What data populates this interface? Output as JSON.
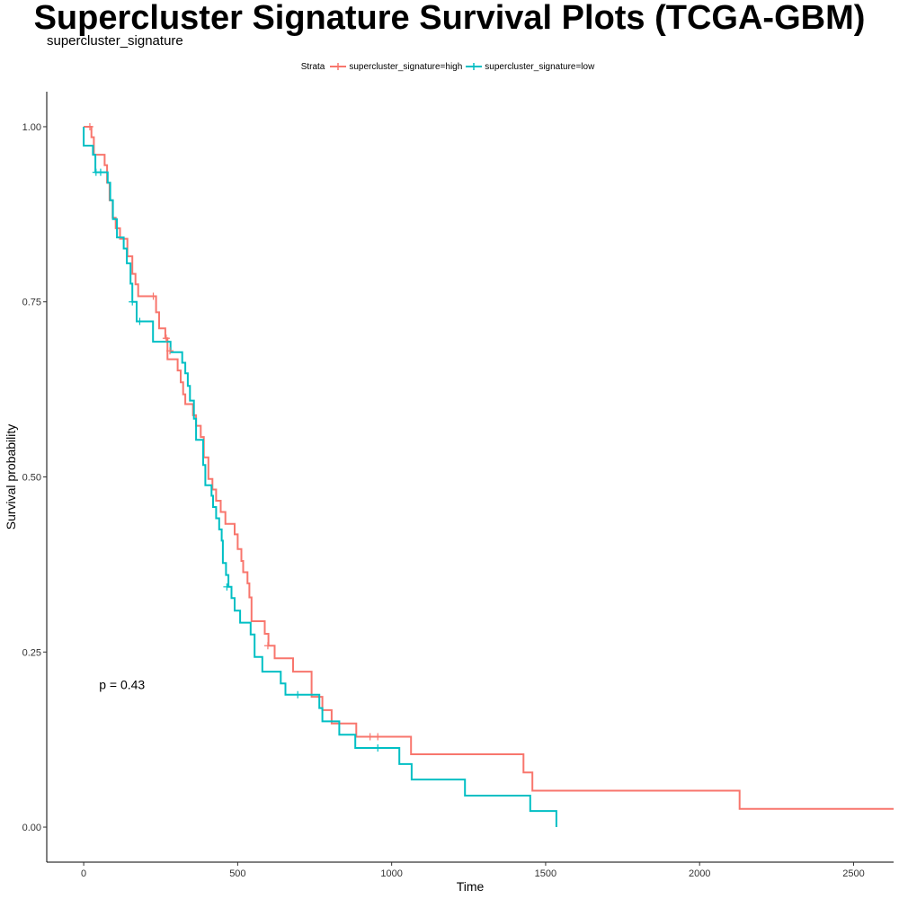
{
  "title": "Supercluster Signature Survival Plots (TCGA-GBM)",
  "subtitle": "supercluster_signature",
  "legend": {
    "title": "Strata",
    "items": [
      {
        "label": "supercluster_signature=high",
        "color": "#F8766D"
      },
      {
        "label": "supercluster_signature=low",
        "color": "#00BFC4"
      }
    ]
  },
  "chart_data": {
    "type": "line",
    "step": true,
    "xlabel": "Time",
    "ylabel": "Survival probability",
    "xlim": [
      -120,
      2630
    ],
    "ylim": [
      -0.05,
      1.05
    ],
    "xticks": [
      0,
      500,
      1000,
      1500,
      2000,
      2500
    ],
    "xtick_labels": [
      "0",
      "500",
      "1000",
      "1500",
      "2000",
      "2500"
    ],
    "yticks": [
      0,
      0.25,
      0.5,
      0.75,
      1.0
    ],
    "ytick_labels": [
      "0.00",
      "0.25",
      "0.50",
      "0.75",
      "1.00"
    ],
    "grid": false,
    "annotation": {
      "text": "p = 0.43",
      "x": 50,
      "y": 0.197
    },
    "series": [
      {
        "name": "supercluster_signature=high",
        "color": "#F8766D",
        "points": [
          [
            0,
            1.0
          ],
          [
            25,
            1.0
          ],
          [
            25,
            0.985
          ],
          [
            33,
            0.985
          ],
          [
            33,
            0.96
          ],
          [
            68,
            0.96
          ],
          [
            68,
            0.945
          ],
          [
            76,
            0.945
          ],
          [
            76,
            0.92
          ],
          [
            84,
            0.92
          ],
          [
            84,
            0.895
          ],
          [
            94,
            0.895
          ],
          [
            94,
            0.87
          ],
          [
            104,
            0.87
          ],
          [
            104,
            0.855
          ],
          [
            118,
            0.855
          ],
          [
            118,
            0.84
          ],
          [
            142,
            0.84
          ],
          [
            142,
            0.815
          ],
          [
            158,
            0.815
          ],
          [
            158,
            0.79
          ],
          [
            168,
            0.79
          ],
          [
            168,
            0.775
          ],
          [
            177,
            0.775
          ],
          [
            177,
            0.758
          ],
          [
            235,
            0.758
          ],
          [
            235,
            0.735
          ],
          [
            245,
            0.735
          ],
          [
            245,
            0.712
          ],
          [
            265,
            0.712
          ],
          [
            265,
            0.698
          ],
          [
            272,
            0.698
          ],
          [
            272,
            0.668
          ],
          [
            305,
            0.668
          ],
          [
            305,
            0.652
          ],
          [
            315,
            0.652
          ],
          [
            315,
            0.635
          ],
          [
            323,
            0.635
          ],
          [
            323,
            0.618
          ],
          [
            330,
            0.618
          ],
          [
            330,
            0.604
          ],
          [
            355,
            0.604
          ],
          [
            355,
            0.588
          ],
          [
            365,
            0.588
          ],
          [
            365,
            0.573
          ],
          [
            380,
            0.573
          ],
          [
            380,
            0.557
          ],
          [
            390,
            0.557
          ],
          [
            390,
            0.528
          ],
          [
            405,
            0.528
          ],
          [
            405,
            0.497
          ],
          [
            418,
            0.497
          ],
          [
            418,
            0.482
          ],
          [
            430,
            0.482
          ],
          [
            430,
            0.466
          ],
          [
            445,
            0.466
          ],
          [
            445,
            0.45
          ],
          [
            460,
            0.45
          ],
          [
            460,
            0.433
          ],
          [
            490,
            0.433
          ],
          [
            490,
            0.418
          ],
          [
            500,
            0.418
          ],
          [
            500,
            0.397
          ],
          [
            512,
            0.397
          ],
          [
            512,
            0.38
          ],
          [
            518,
            0.38
          ],
          [
            518,
            0.364
          ],
          [
            532,
            0.364
          ],
          [
            532,
            0.348
          ],
          [
            538,
            0.348
          ],
          [
            538,
            0.328
          ],
          [
            545,
            0.328
          ],
          [
            545,
            0.294
          ],
          [
            588,
            0.294
          ],
          [
            588,
            0.276
          ],
          [
            600,
            0.276
          ],
          [
            600,
            0.259
          ],
          [
            620,
            0.259
          ],
          [
            620,
            0.241
          ],
          [
            680,
            0.241
          ],
          [
            680,
            0.222
          ],
          [
            740,
            0.222
          ],
          [
            740,
            0.186
          ],
          [
            775,
            0.186
          ],
          [
            775,
            0.167
          ],
          [
            805,
            0.167
          ],
          [
            805,
            0.148
          ],
          [
            885,
            0.148
          ],
          [
            885,
            0.129
          ],
          [
            1063,
            0.129
          ],
          [
            1063,
            0.104
          ],
          [
            1428,
            0.104
          ],
          [
            1428,
            0.078
          ],
          [
            1457,
            0.078
          ],
          [
            1457,
            0.052
          ],
          [
            2130,
            0.052
          ],
          [
            2130,
            0.026
          ],
          [
            2630,
            0.026
          ]
        ],
        "censors": [
          [
            20,
            1.0
          ],
          [
            226,
            0.758
          ],
          [
            268,
            0.698
          ],
          [
            280,
            0.68
          ],
          [
            598,
            0.259
          ],
          [
            930,
            0.129
          ],
          [
            955,
            0.129
          ]
        ]
      },
      {
        "name": "supercluster_signature=low",
        "color": "#00BFC4",
        "points": [
          [
            0,
            1.0
          ],
          [
            0,
            0.973
          ],
          [
            30,
            0.973
          ],
          [
            30,
            0.96
          ],
          [
            38,
            0.96
          ],
          [
            38,
            0.935
          ],
          [
            78,
            0.935
          ],
          [
            78,
            0.92
          ],
          [
            86,
            0.92
          ],
          [
            86,
            0.895
          ],
          [
            95,
            0.895
          ],
          [
            95,
            0.868
          ],
          [
            108,
            0.868
          ],
          [
            108,
            0.842
          ],
          [
            130,
            0.842
          ],
          [
            130,
            0.826
          ],
          [
            140,
            0.826
          ],
          [
            140,
            0.805
          ],
          [
            152,
            0.805
          ],
          [
            152,
            0.776
          ],
          [
            158,
            0.776
          ],
          [
            158,
            0.75
          ],
          [
            172,
            0.75
          ],
          [
            172,
            0.722
          ],
          [
            225,
            0.722
          ],
          [
            225,
            0.693
          ],
          [
            282,
            0.693
          ],
          [
            282,
            0.678
          ],
          [
            320,
            0.678
          ],
          [
            320,
            0.663
          ],
          [
            330,
            0.663
          ],
          [
            330,
            0.648
          ],
          [
            338,
            0.648
          ],
          [
            338,
            0.63
          ],
          [
            345,
            0.63
          ],
          [
            345,
            0.609
          ],
          [
            358,
            0.609
          ],
          [
            358,
            0.583
          ],
          [
            365,
            0.583
          ],
          [
            365,
            0.553
          ],
          [
            388,
            0.553
          ],
          [
            388,
            0.517
          ],
          [
            395,
            0.517
          ],
          [
            395,
            0.488
          ],
          [
            415,
            0.488
          ],
          [
            415,
            0.473
          ],
          [
            420,
            0.473
          ],
          [
            420,
            0.457
          ],
          [
            430,
            0.457
          ],
          [
            430,
            0.441
          ],
          [
            440,
            0.441
          ],
          [
            440,
            0.425
          ],
          [
            448,
            0.425
          ],
          [
            448,
            0.409
          ],
          [
            452,
            0.409
          ],
          [
            452,
            0.377
          ],
          [
            462,
            0.377
          ],
          [
            462,
            0.36
          ],
          [
            470,
            0.36
          ],
          [
            470,
            0.343
          ],
          [
            480,
            0.343
          ],
          [
            480,
            0.327
          ],
          [
            490,
            0.327
          ],
          [
            490,
            0.309
          ],
          [
            508,
            0.309
          ],
          [
            508,
            0.292
          ],
          [
            542,
            0.292
          ],
          [
            542,
            0.275
          ],
          [
            555,
            0.275
          ],
          [
            555,
            0.243
          ],
          [
            580,
            0.243
          ],
          [
            580,
            0.222
          ],
          [
            640,
            0.222
          ],
          [
            640,
            0.205
          ],
          [
            655,
            0.205
          ],
          [
            655,
            0.189
          ],
          [
            765,
            0.189
          ],
          [
            765,
            0.17
          ],
          [
            775,
            0.17
          ],
          [
            775,
            0.151
          ],
          [
            830,
            0.151
          ],
          [
            830,
            0.132
          ],
          [
            882,
            0.132
          ],
          [
            882,
            0.113
          ],
          [
            1025,
            0.113
          ],
          [
            1025,
            0.09
          ],
          [
            1065,
            0.09
          ],
          [
            1065,
            0.068
          ],
          [
            1238,
            0.068
          ],
          [
            1238,
            0.045
          ],
          [
            1450,
            0.045
          ],
          [
            1450,
            0.023
          ],
          [
            1535,
            0.023
          ],
          [
            1535,
            0.0
          ]
        ],
        "censors": [
          [
            40,
            0.935
          ],
          [
            55,
            0.935
          ],
          [
            158,
            0.75
          ],
          [
            182,
            0.722
          ],
          [
            465,
            0.343
          ],
          [
            695,
            0.189
          ],
          [
            955,
            0.113
          ]
        ]
      }
    ]
  }
}
